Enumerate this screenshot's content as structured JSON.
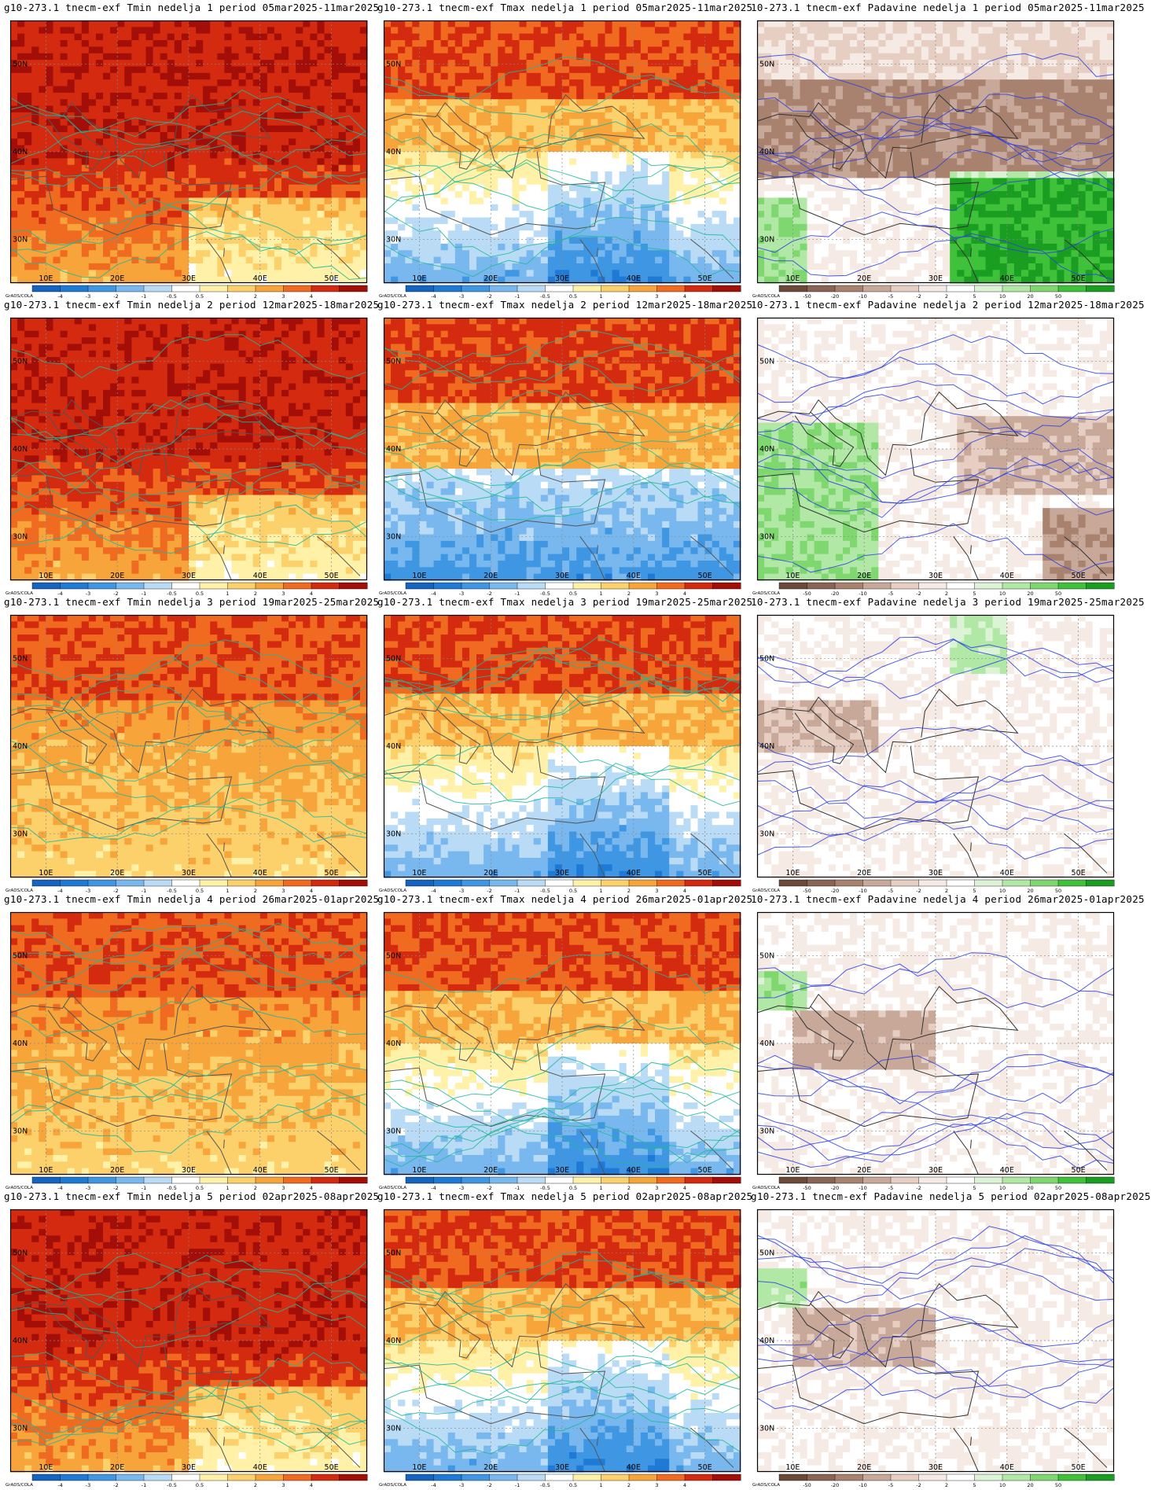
{
  "common": {
    "credit": "GrADS/COLA",
    "lon_labels": [
      "10E",
      "20E",
      "30E",
      "40E",
      "50E"
    ],
    "lat_labels": [
      "50N",
      "40N",
      "30N"
    ]
  },
  "legends": {
    "temp": {
      "labels": [
        "-4",
        "-3",
        "-2",
        "-1",
        "-0.5",
        "0.5",
        "1",
        "2",
        "3",
        "4"
      ],
      "colors": [
        "#1565c0",
        "#1e7ad4",
        "#3f97e4",
        "#79b8ee",
        "#b9dbf6",
        "#ffffff",
        "#fff2a8",
        "#fcd06a",
        "#f7a43a",
        "#f06a20",
        "#d42a0f",
        "#a30f08"
      ]
    },
    "precip": {
      "labels": [
        "-50",
        "-20",
        "-10",
        "-5",
        "-2",
        "2",
        "5",
        "10",
        "20",
        "50"
      ],
      "colors": [
        "#6b4a3a",
        "#8a6454",
        "#a8826f",
        "#c8a898",
        "#e6cfc2",
        "#f6ebe4",
        "#ffffff",
        "#ddf3d6",
        "#b2e8a6",
        "#7fd86f",
        "#3fc23a",
        "#1a9e22"
      ]
    }
  },
  "rows": [
    {
      "week": "1",
      "period": "05mar2025-11mar2025",
      "titles": [
        "g10-273.1 tnecm-exf Tmin nedelja 1 period 05mar2025-11mar2025",
        "g10-273.1 tnecm-exf Tmax nedelja 1 period 05mar2025-11mar2025",
        "10-273.1 tnecm-exf Padavine nedelja 1 period 05mar2025-11mar2025"
      ]
    },
    {
      "week": "2",
      "period": "12mar2025-18mar2025",
      "titles": [
        "g10-273.1 tnecm-exf Tmin nedelja 2 period 12mar2025-18mar2025",
        "g10-273.1 tnecm-exf Tmax nedelja 2 period 12mar2025-18mar2025",
        "10-273.1 tnecm-exf Padavine nedelja 2 period 12mar2025-18mar2025"
      ]
    },
    {
      "week": "3",
      "period": "19mar2025-25mar2025",
      "titles": [
        "g10-273.1 tnecm-exf Tmin nedelja 3 period 19mar2025-25mar2025",
        "g10-273.1 tnecm-exf Tmax nedelja 3 period 19mar2025-25mar2025",
        "10-273.1 tnecm-exf Padavine nedelja 3 period 19mar2025-25mar2025"
      ]
    },
    {
      "week": "4",
      "period": "26mar2025-01apr2025",
      "titles": [
        "g10-273.1 tnecm-exf Tmin nedelja 4 period 26mar2025-01apr2025",
        "g10-273.1 tnecm-exf Tmax nedelja 4 period 26mar2025-01apr2025",
        "10-273.1 tnecm-exf Padavine nedelja 4 period 26mar2025-01apr2025"
      ]
    },
    {
      "week": "5",
      "period": "02apr2025-08apr2025",
      "titles": [
        "g10-273.1 tnecm-exf Tmin nedelja 5 period 02apr2025-08apr2025",
        "g10-273.1 tnecm-exf Tmax nedelja 5 period 02apr2025-08apr2025",
        "g10-273.1 tnecm-exf Padavine nedelja 5 period 02apr2025-08apr2025"
      ]
    }
  ],
  "variables": [
    "Tmin",
    "Tmax",
    "Padavine"
  ],
  "map_fields": [
    [
      "warm-strong",
      "cool-south",
      "dry-north-wet-east"
    ],
    [
      "warm-strong",
      "warm-north-cool-south",
      "mixed-wet-west"
    ],
    [
      "warm-moderate",
      "cool-south",
      "near-normal"
    ],
    [
      "warm-moderate",
      "cool-south",
      "dry-central"
    ],
    [
      "warm-strong",
      "cool-south",
      "dry-central"
    ]
  ]
}
